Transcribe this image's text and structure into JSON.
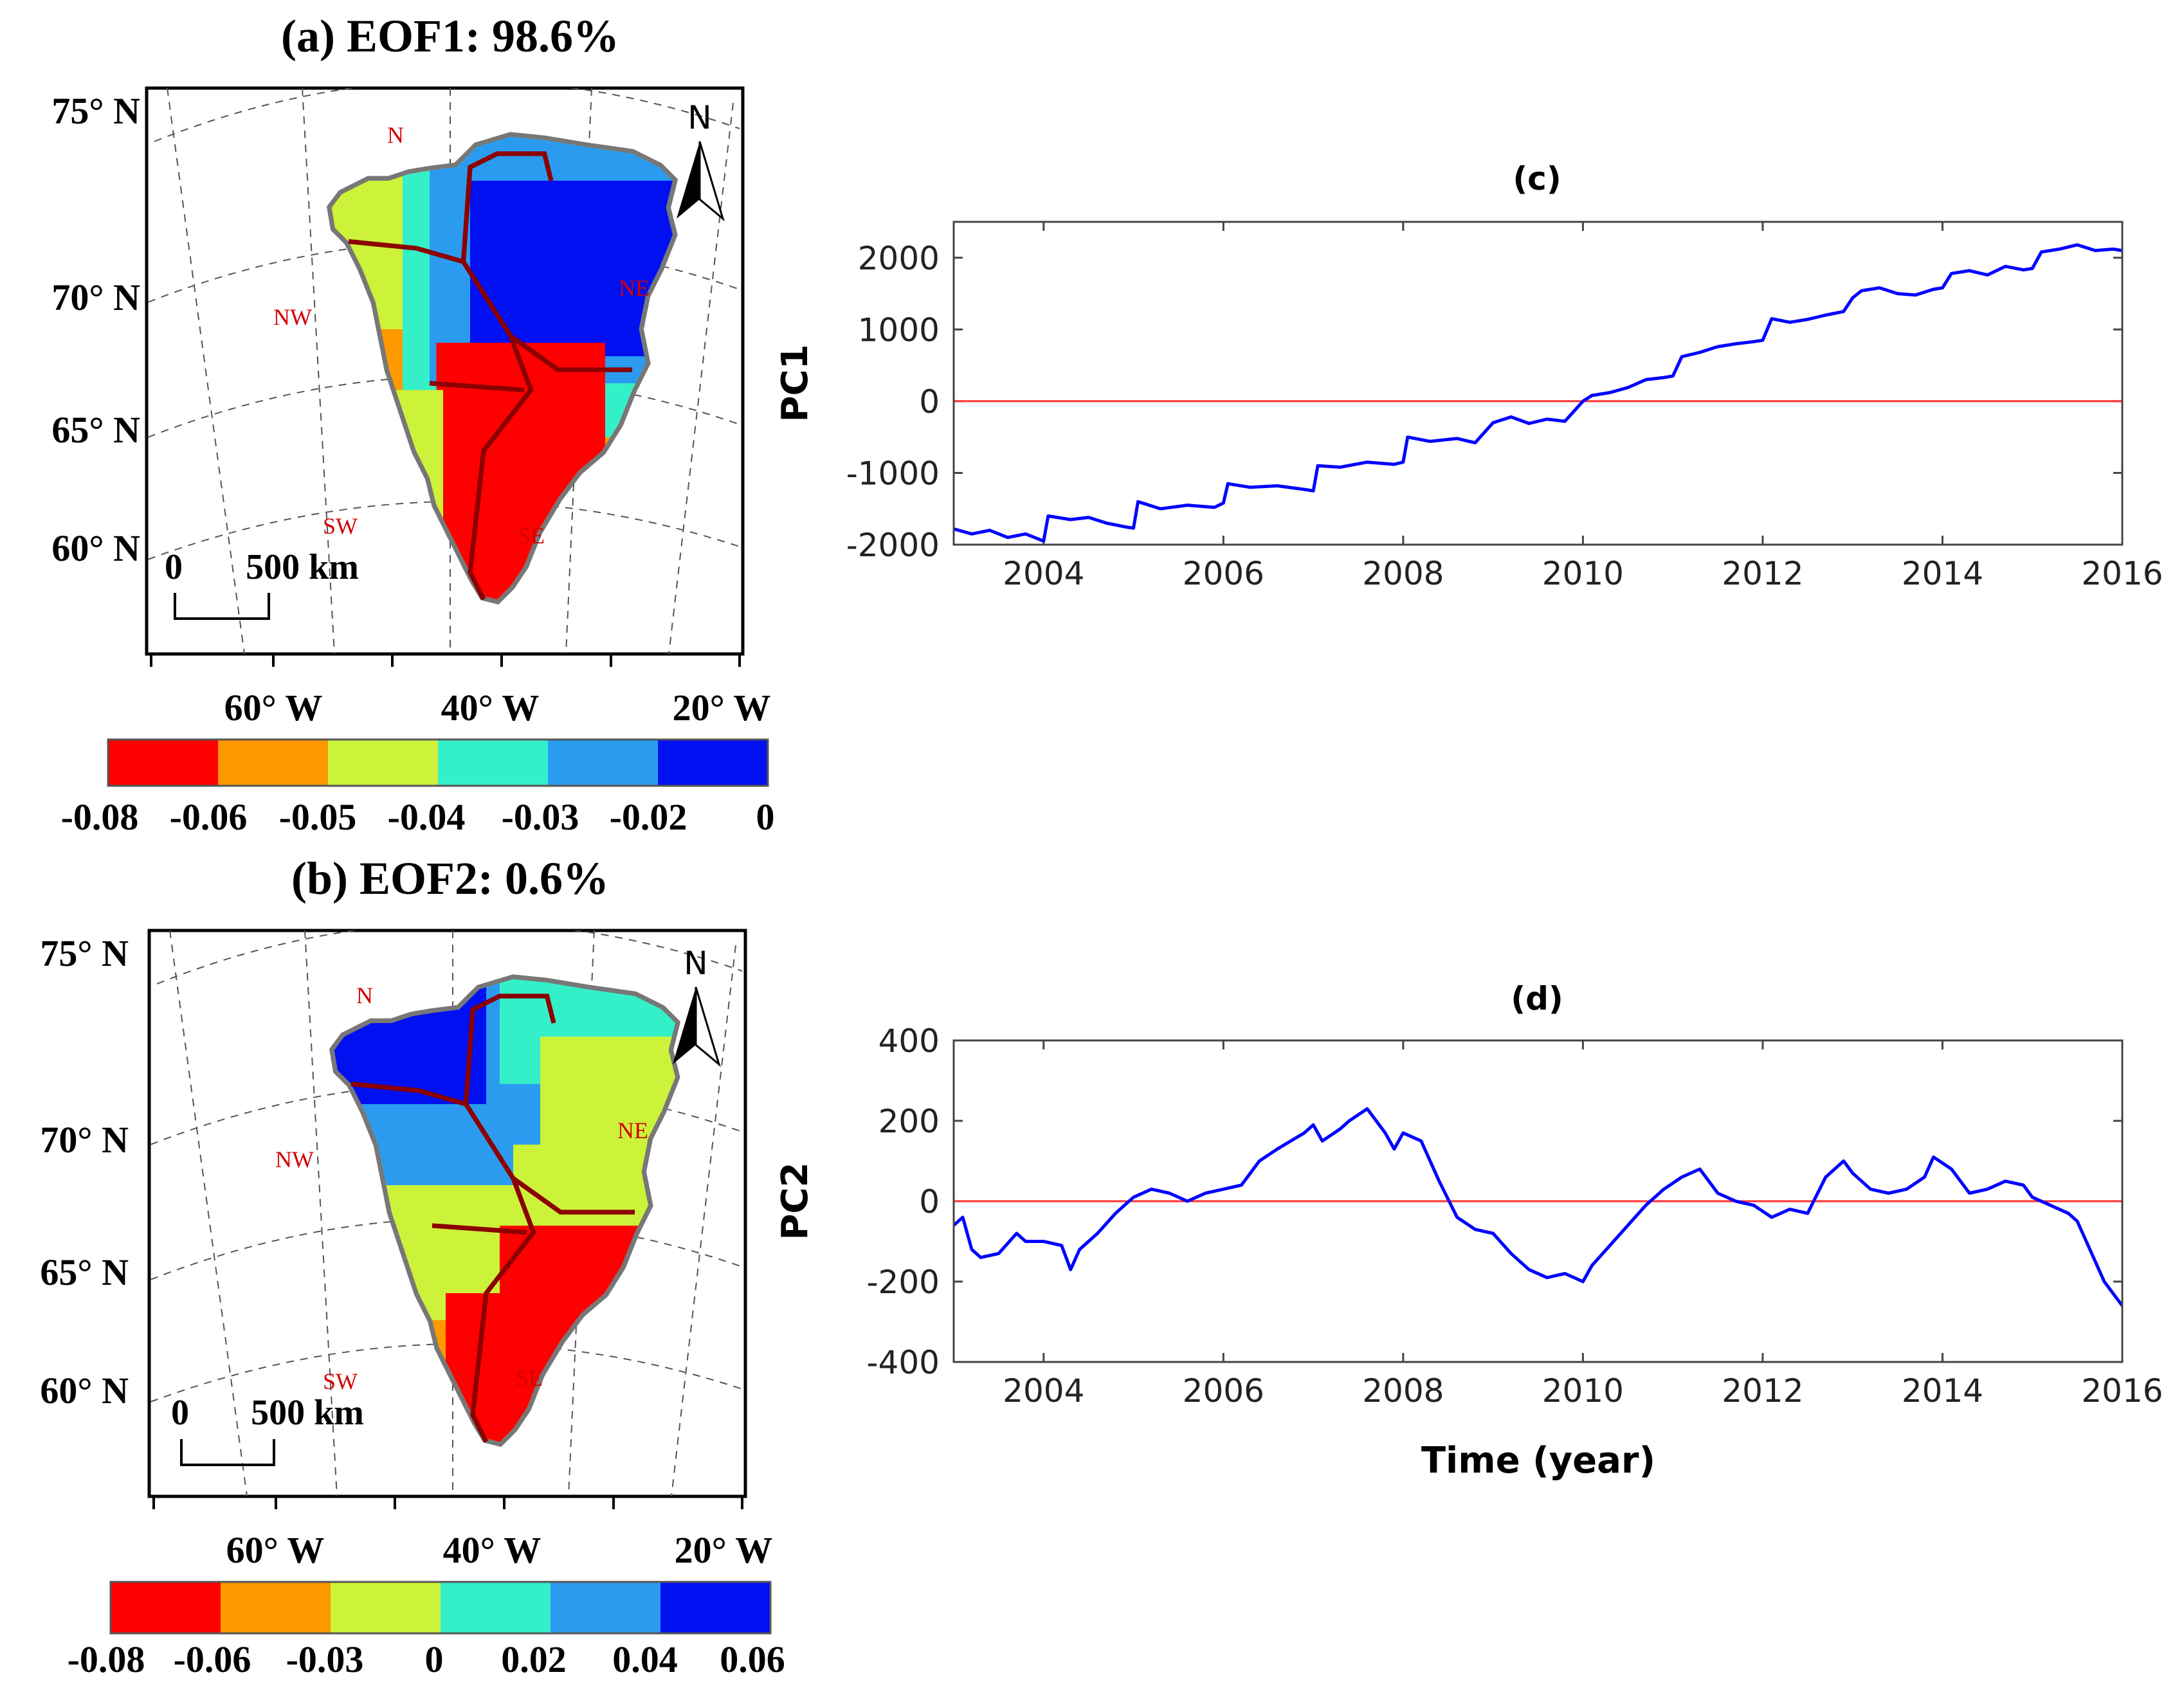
{
  "map_panels": [
    {
      "title": "(a) EOF1: 98.6%",
      "lat_labels": [
        "75° N",
        "70° N",
        "65° N",
        "60° N"
      ],
      "lon_labels": [
        "60° W",
        "40° W",
        "20° W"
      ],
      "regions": [
        "N",
        "NW",
        "NE",
        "SW",
        "SE"
      ],
      "north_label": "N",
      "scale_zero": "0",
      "scale_label": "500 km",
      "colorbar": {
        "colors": [
          "#ff0000",
          "#ff9900",
          "#ccf23a",
          "#33f0c8",
          "#2b9bf0",
          "#0010f0"
        ],
        "ticks": [
          "-0.08",
          "-0.06",
          "-0.05",
          "-0.04",
          "-0.03",
          "-0.02",
          "0"
        ]
      }
    },
    {
      "title": "(b) EOF2: 0.6%",
      "lat_labels": [
        "75° N",
        "70° N",
        "65° N",
        "60° N"
      ],
      "lon_labels": [
        "60° W",
        "40° W",
        "20° W"
      ],
      "regions": [
        "N",
        "NW",
        "NE",
        "SW",
        "SE"
      ],
      "north_label": "N",
      "scale_zero": "0",
      "scale_label": "500 km",
      "colorbar": {
        "colors": [
          "#ff0000",
          "#ff9900",
          "#ccf23a",
          "#33f0c8",
          "#2b9bf0",
          "#0010f0"
        ],
        "ticks": [
          "-0.08",
          "-0.06",
          "-0.03",
          "0",
          "0.02",
          "0.04",
          "0.06"
        ]
      }
    }
  ],
  "chart_data": [
    {
      "type": "line",
      "title": "(c)",
      "xlabel": "",
      "ylabel": "PC1",
      "xlim": [
        2003,
        2016
      ],
      "ylim": [
        -2000,
        2500
      ],
      "xticks": [
        2004,
        2006,
        2008,
        2010,
        2012,
        2014,
        2016
      ],
      "yticks": [
        -2000,
        -1000,
        0,
        1000,
        2000
      ],
      "grid": false,
      "reference_line": {
        "y": 0,
        "color": "#ff3030"
      },
      "series_color": "#0000ff",
      "x": [
        2003.0,
        2003.2,
        2003.4,
        2003.6,
        2003.8,
        2004.0,
        2004.05,
        2004.3,
        2004.5,
        2004.7,
        2004.9,
        2005.0,
        2005.05,
        2005.3,
        2005.6,
        2005.9,
        2006.0,
        2006.05,
        2006.3,
        2006.6,
        2006.9,
        2007.0,
        2007.05,
        2007.3,
        2007.6,
        2007.9,
        2008.0,
        2008.05,
        2008.3,
        2008.6,
        2008.8,
        2009.0,
        2009.2,
        2009.4,
        2009.6,
        2009.8,
        2010.0,
        2010.1,
        2010.3,
        2010.5,
        2010.7,
        2010.9,
        2011.0,
        2011.1,
        2011.3,
        2011.5,
        2011.7,
        2011.9,
        2012.0,
        2012.1,
        2012.3,
        2012.5,
        2012.7,
        2012.9,
        2013.0,
        2013.1,
        2013.3,
        2013.5,
        2013.7,
        2013.9,
        2014.0,
        2014.1,
        2014.3,
        2014.5,
        2014.7,
        2014.9,
        2015.0,
        2015.1,
        2015.3,
        2015.5,
        2015.7,
        2015.9,
        2016.0
      ],
      "values": [
        -1780,
        -1850,
        -1800,
        -1900,
        -1850,
        -1950,
        -1600,
        -1650,
        -1620,
        -1700,
        -1750,
        -1770,
        -1400,
        -1500,
        -1450,
        -1480,
        -1420,
        -1150,
        -1200,
        -1180,
        -1230,
        -1250,
        -900,
        -920,
        -850,
        -880,
        -850,
        -500,
        -560,
        -520,
        -580,
        -300,
        -220,
        -310,
        -250,
        -280,
        0,
        80,
        120,
        190,
        300,
        330,
        350,
        620,
        680,
        760,
        800,
        830,
        850,
        1150,
        1100,
        1140,
        1200,
        1250,
        1440,
        1540,
        1580,
        1500,
        1480,
        1560,
        1580,
        1780,
        1820,
        1760,
        1880,
        1830,
        1850,
        2080,
        2120,
        2180,
        2100,
        2120,
        2100
      ]
    },
    {
      "type": "line",
      "title": "(d)",
      "xlabel": "Time (year)",
      "ylabel": "PC2",
      "xlim": [
        2003,
        2016
      ],
      "ylim": [
        -400,
        400
      ],
      "xticks": [
        2004,
        2006,
        2008,
        2010,
        2012,
        2014,
        2016
      ],
      "yticks": [
        -400,
        -200,
        0,
        200,
        400
      ],
      "grid": false,
      "reference_line": {
        "y": 0,
        "color": "#ff3030"
      },
      "series_color": "#0000ff",
      "x": [
        2003.0,
        2003.1,
        2003.2,
        2003.3,
        2003.5,
        2003.7,
        2003.8,
        2004.0,
        2004.2,
        2004.3,
        2004.4,
        2004.6,
        2004.8,
        2005.0,
        2005.2,
        2005.4,
        2005.6,
        2005.8,
        2006.0,
        2006.2,
        2006.4,
        2006.6,
        2006.9,
        2007.0,
        2007.1,
        2007.3,
        2007.4,
        2007.6,
        2007.8,
        2007.9,
        2008.0,
        2008.2,
        2008.4,
        2008.6,
        2008.8,
        2009.0,
        2009.2,
        2009.4,
        2009.6,
        2009.8,
        2010.0,
        2010.1,
        2010.3,
        2010.5,
        2010.7,
        2010.9,
        2011.1,
        2011.3,
        2011.5,
        2011.7,
        2011.9,
        2012.1,
        2012.3,
        2012.5,
        2012.7,
        2012.9,
        2013.0,
        2013.2,
        2013.4,
        2013.6,
        2013.8,
        2013.9,
        2014.1,
        2014.3,
        2014.5,
        2014.7,
        2014.9,
        2015.0,
        2015.2,
        2015.4,
        2015.5,
        2015.6,
        2015.8,
        2016.0
      ],
      "values": [
        -60,
        -40,
        -120,
        -140,
        -130,
        -80,
        -100,
        -100,
        -110,
        -170,
        -120,
        -80,
        -30,
        10,
        30,
        20,
        0,
        20,
        30,
        40,
        100,
        130,
        170,
        190,
        150,
        180,
        200,
        230,
        170,
        130,
        170,
        150,
        50,
        -40,
        -70,
        -80,
        -130,
        -170,
        -190,
        -180,
        -200,
        -160,
        -110,
        -60,
        -10,
        30,
        60,
        80,
        20,
        0,
        -10,
        -40,
        -20,
        -30,
        60,
        100,
        70,
        30,
        20,
        30,
        60,
        110,
        80,
        20,
        30,
        50,
        40,
        10,
        -10,
        -30,
        -50,
        -100,
        -200,
        -260
      ]
    }
  ]
}
